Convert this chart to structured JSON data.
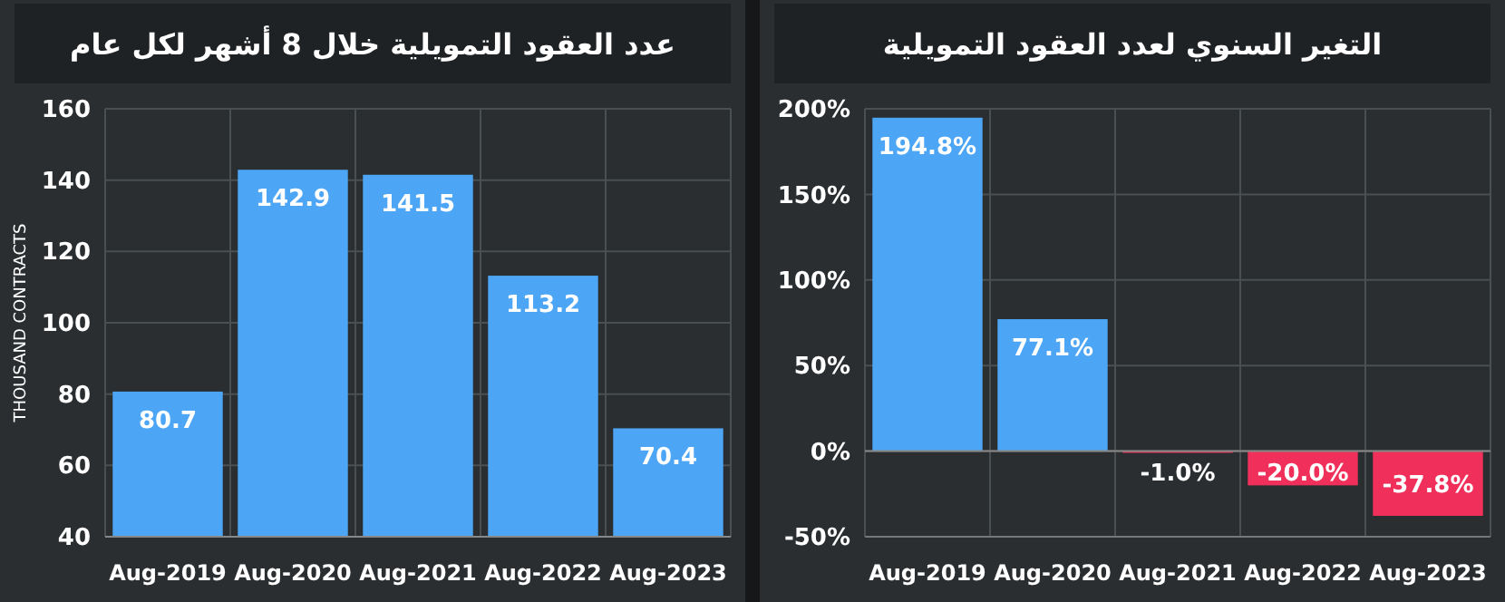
{
  "chart_data": [
    {
      "type": "bar",
      "title": "عدد العقود التمويلية خلال 8 أشهر لكل عام",
      "ylabel": "THOUSAND CONTRACTS",
      "categories": [
        "Aug-2019",
        "Aug-2020",
        "Aug-2021",
        "Aug-2022",
        "Aug-2023"
      ],
      "values": [
        80.7,
        142.9,
        141.5,
        113.2,
        70.4
      ],
      "color": "#4da6f5",
      "ylim": [
        40,
        160
      ],
      "yticks": [
        40,
        60,
        80,
        100,
        120,
        140,
        160
      ],
      "grid": true,
      "data_labels": true
    },
    {
      "type": "bar",
      "title": "التغير السنوي لعدد العقود التمويلية",
      "categories": [
        "Aug-2019",
        "Aug-2020",
        "Aug-2021",
        "Aug-2022",
        "Aug-2023"
      ],
      "values": [
        194.8,
        77.1,
        -1.0,
        -20.0,
        -37.8
      ],
      "colors": [
        "#4da6f5",
        "#4da6f5",
        "#f0305a",
        "#f0305a",
        "#f0305a"
      ],
      "value_labels": [
        "194.8%",
        "77.1%",
        "-1.0%",
        "-20.0%",
        "-37.8%"
      ],
      "ylim": [
        -50,
        200
      ],
      "yticks": [
        {
          "value": -50,
          "label": "-50%"
        },
        {
          "value": 0,
          "label": "0%"
        },
        {
          "value": 50,
          "label": "50%"
        },
        {
          "value": 100,
          "label": "100%"
        },
        {
          "value": 150,
          "label": "150%"
        },
        {
          "value": 200,
          "label": "200%"
        }
      ],
      "grid": true
    }
  ]
}
